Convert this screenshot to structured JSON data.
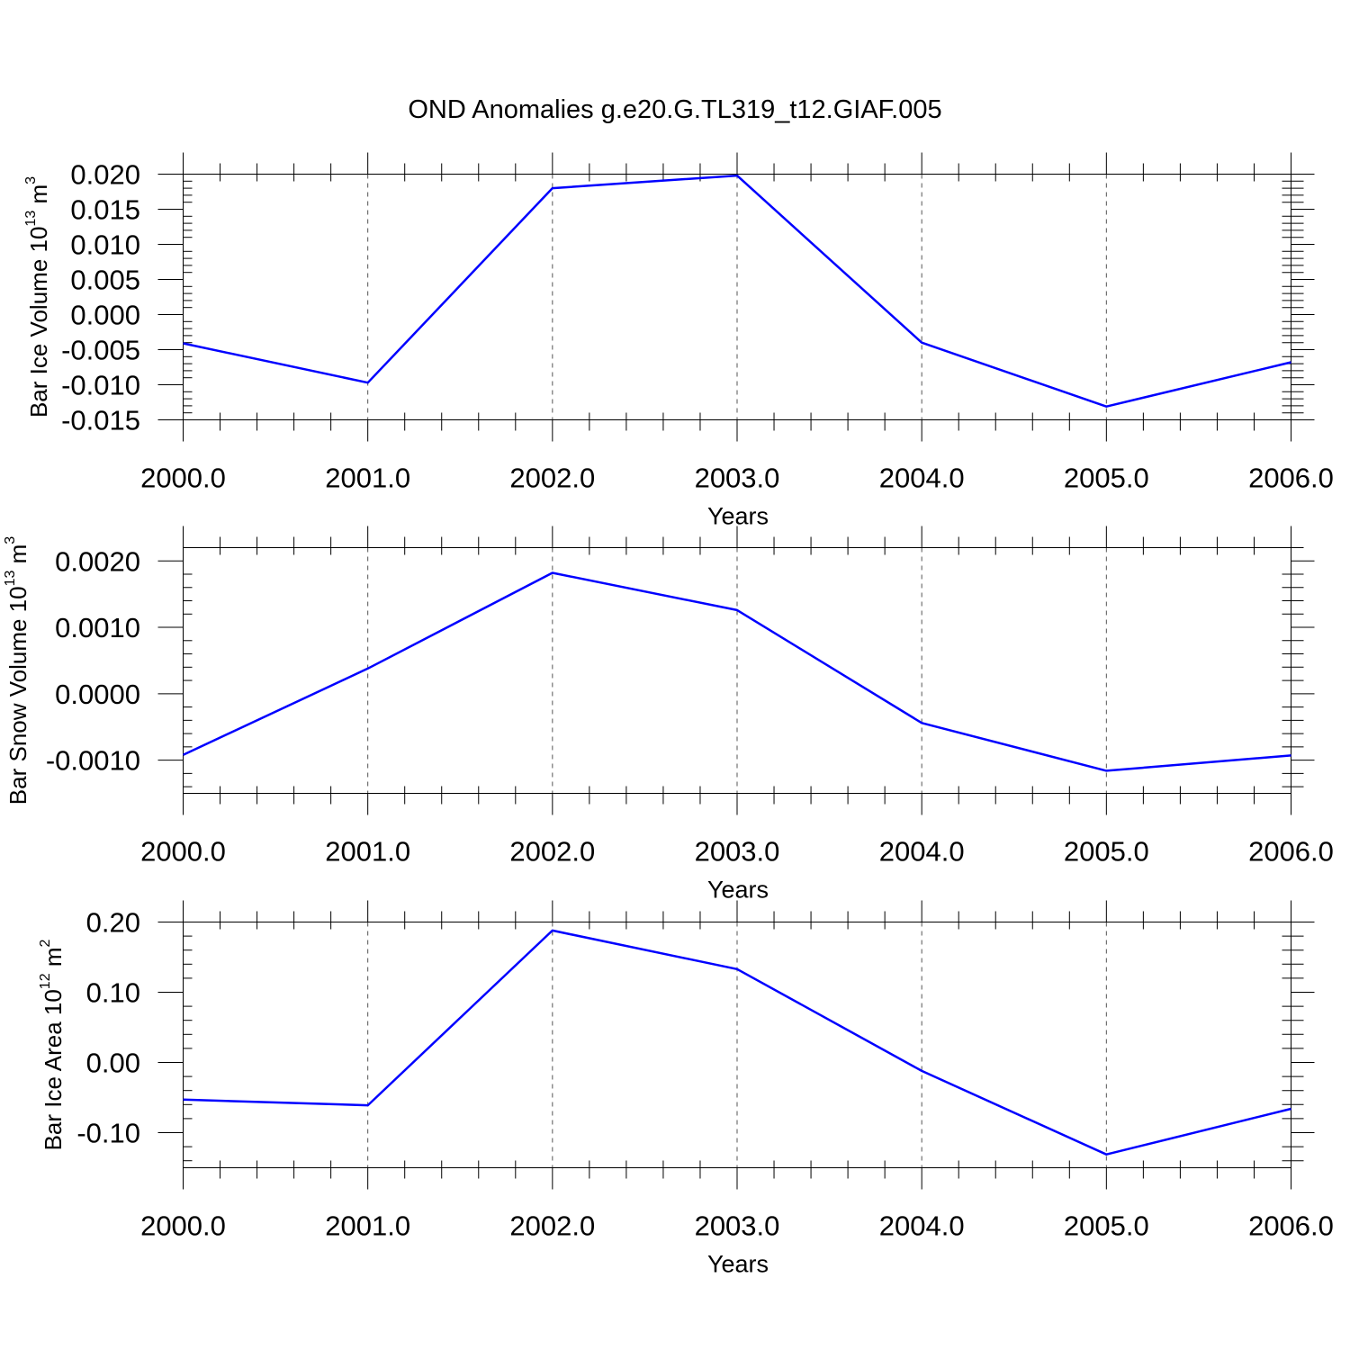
{
  "title": "OND Anomalies g.e20.G.TL319_t12.GIAF.005",
  "colors": {
    "series": "#0000ff",
    "axis": "#000000",
    "grid": "#555555"
  },
  "chart_data": [
    {
      "type": "line",
      "xlabel": "Years",
      "ylabel": {
        "main": "Bar Ice Volume 10",
        "exp": "13",
        "unit": " m",
        "unit_exp": "3"
      },
      "x": [
        2000,
        2001,
        2002,
        2003,
        2004,
        2005,
        2006
      ],
      "values": [
        -0.0041,
        -0.0097,
        0.018,
        0.0198,
        -0.004,
        -0.0131,
        -0.0068
      ],
      "xlim": [
        2000,
        2006
      ],
      "ylim": [
        -0.015,
        0.02
      ],
      "yticks": [
        0.02,
        0.015,
        0.01,
        0.005,
        0.0,
        -0.005,
        -0.01,
        -0.015
      ],
      "ytick_labels": [
        "0.020",
        "0.015",
        "0.010",
        "0.005",
        "0.000",
        "-0.005",
        "-0.010",
        "-0.015"
      ],
      "xtick_labels": [
        "2000.0",
        "2001.0",
        "2002.0",
        "2003.0",
        "2004.0",
        "2005.0",
        "2006.0"
      ],
      "grid": "vertical dashed at major x ticks"
    },
    {
      "type": "line",
      "xlabel": "Years",
      "ylabel": {
        "main": "Bar Snow Volume 10",
        "exp": "13",
        "unit": " m",
        "unit_exp": "3"
      },
      "x": [
        2000,
        2001,
        2002,
        2003,
        2004,
        2005,
        2006
      ],
      "values": [
        -0.00092,
        0.00038,
        0.00182,
        0.00126,
        -0.00044,
        -0.00116,
        -0.00093
      ],
      "xlim": [
        2000,
        2006
      ],
      "ylim": [
        -0.0015,
        0.0022
      ],
      "yticks": [
        0.002,
        0.001,
        0.0,
        -0.001
      ],
      "ytick_labels": [
        "0.0020",
        "0.0010",
        "0.0000",
        "-0.0010"
      ],
      "xtick_labels": [
        "2000.0",
        "2001.0",
        "2002.0",
        "2003.0",
        "2004.0",
        "2005.0",
        "2006.0"
      ],
      "grid": "vertical dashed at major x ticks"
    },
    {
      "type": "line",
      "xlabel": "Years",
      "ylabel": {
        "main": "Bar Ice Area 10",
        "exp": "12",
        "unit": " m",
        "unit_exp": "2"
      },
      "x": [
        2000,
        2001,
        2002,
        2003,
        2004,
        2005,
        2006
      ],
      "values": [
        -0.053,
        -0.061,
        0.188,
        0.133,
        -0.012,
        -0.131,
        -0.066
      ],
      "xlim": [
        2000,
        2006
      ],
      "ylim": [
        -0.15,
        0.2
      ],
      "yticks": [
        0.2,
        0.1,
        0.0,
        -0.1
      ],
      "ytick_labels": [
        "0.20",
        "0.10",
        "0.00",
        "-0.10"
      ],
      "xtick_labels": [
        "2000.0",
        "2001.0",
        "2002.0",
        "2003.0",
        "2004.0",
        "2005.0",
        "2006.0"
      ],
      "grid": "vertical dashed at major x ticks"
    }
  ]
}
